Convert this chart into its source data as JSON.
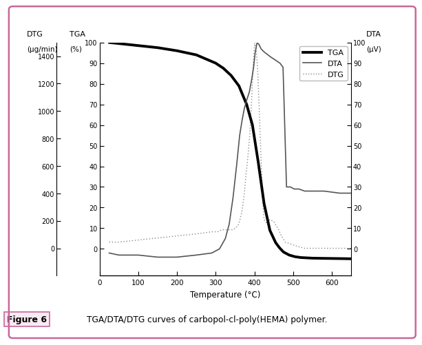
{
  "tga_x": [
    25,
    50,
    100,
    150,
    200,
    250,
    300,
    320,
    340,
    360,
    380,
    395,
    410,
    425,
    440,
    455,
    465,
    475,
    490,
    505,
    520,
    550,
    580,
    620,
    650
  ],
  "tga_y": [
    100,
    99.5,
    98.5,
    97.5,
    96.0,
    94.0,
    90.0,
    87.5,
    84.0,
    79.0,
    70.0,
    60.0,
    42.0,
    22.0,
    9.0,
    3.0,
    0.5,
    -1.5,
    -3.0,
    -3.8,
    -4.2,
    -4.5,
    -4.6,
    -4.7,
    -4.8
  ],
  "dta_x": [
    25,
    50,
    100,
    150,
    200,
    250,
    290,
    310,
    325,
    335,
    345,
    355,
    362,
    368,
    374,
    380,
    387,
    393,
    398,
    402,
    407,
    412,
    417,
    422,
    428,
    435,
    442,
    450,
    458,
    466,
    474,
    483,
    493,
    503,
    515,
    530,
    550,
    580,
    620,
    650
  ],
  "dta_y": [
    -2,
    -3,
    -3,
    -4,
    -4,
    -3,
    -2,
    0,
    5,
    12,
    25,
    42,
    55,
    62,
    68,
    72,
    76,
    82,
    88,
    95,
    100,
    99,
    97,
    96,
    95,
    94,
    93,
    92,
    91,
    90,
    88,
    30,
    30,
    29,
    29,
    28,
    28,
    28,
    27,
    27
  ],
  "dtg_x": [
    25,
    50,
    100,
    150,
    200,
    250,
    290,
    305,
    315,
    325,
    335,
    345,
    352,
    358,
    363,
    368,
    373,
    378,
    383,
    388,
    393,
    397,
    401,
    405,
    409,
    413,
    417,
    421,
    425,
    432,
    440,
    450,
    460,
    470,
    480,
    495,
    510,
    530,
    560,
    600,
    650
  ],
  "dtg_y": [
    3,
    3,
    4,
    5,
    6,
    7,
    8,
    8,
    9,
    9,
    9,
    9,
    10,
    11,
    14,
    18,
    25,
    35,
    44,
    55,
    72,
    90,
    100,
    96,
    85,
    65,
    45,
    25,
    14,
    12,
    14,
    13,
    10,
    6,
    3,
    2,
    1,
    0,
    0,
    0,
    0
  ],
  "tga_ylim": [
    -13,
    100
  ],
  "dtg_ylim": [
    -200,
    1500
  ],
  "dta_ylim": [
    -13,
    100
  ],
  "xlim": [
    25,
    650
  ],
  "xticks": [
    0,
    100,
    200,
    300,
    400,
    500,
    600
  ],
  "dtg_yticks": [
    0,
    200,
    400,
    600,
    800,
    1000,
    1200,
    1400
  ],
  "tga_yticks": [
    0,
    10,
    20,
    30,
    40,
    50,
    60,
    70,
    80,
    90,
    100
  ],
  "dta_yticks": [
    0,
    10,
    20,
    30,
    40,
    50,
    60,
    70,
    80,
    90,
    100
  ],
  "xlabel": "Temperature (°C)",
  "dtg_label_line1": "DTG",
  "dtg_label_line2": "(μg/min)",
  "tga_label_line1": "TGA",
  "tga_label_line2": "(%)",
  "dta_label_line1": "DTA",
  "dta_label_line2": "(μV)",
  "legend_labels": [
    "TGA",
    "DTA",
    "DTG"
  ],
  "tga_color": "#000000",
  "dta_color": "#555555",
  "dtg_color": "#888888",
  "tga_lw": 2.8,
  "dta_lw": 1.2,
  "dtg_lw": 1.0,
  "bg_color": "#ffffff",
  "border_color": "#c8689a",
  "caption_bg": "#f7eaf2",
  "caption_text": "TGA/DTA/DTG curves of carbopol-cl-poly(HEMA) polymer.",
  "caption_label": "Figure 6",
  "fig_width": 5.85,
  "fig_height": 4.77
}
